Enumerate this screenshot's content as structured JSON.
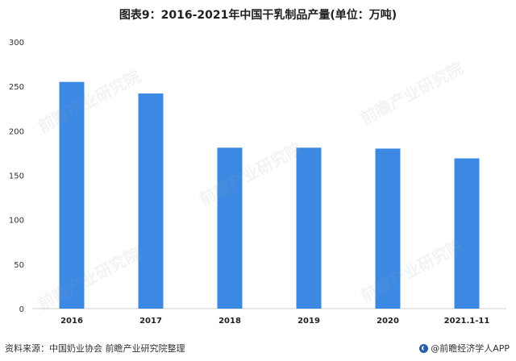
{
  "chart_data": {
    "type": "bar",
    "title": "图表9：2016-2021年中国干乳制品产量(单位：万吨)",
    "categories": [
      "2016",
      "2017",
      "2018",
      "2019",
      "2020",
      "2021.1-11"
    ],
    "values": [
      255,
      242,
      181,
      181,
      180,
      169
    ],
    "ylim": [
      0,
      300
    ],
    "yticks": [
      0,
      50,
      100,
      150,
      200,
      250,
      300
    ],
    "grid": false,
    "bar_color": "#3c89e3"
  },
  "footer": {
    "source": "资料来源：中国奶业协会 前瞻产业研究院整理",
    "brand": "@前瞻经济学人APP"
  }
}
